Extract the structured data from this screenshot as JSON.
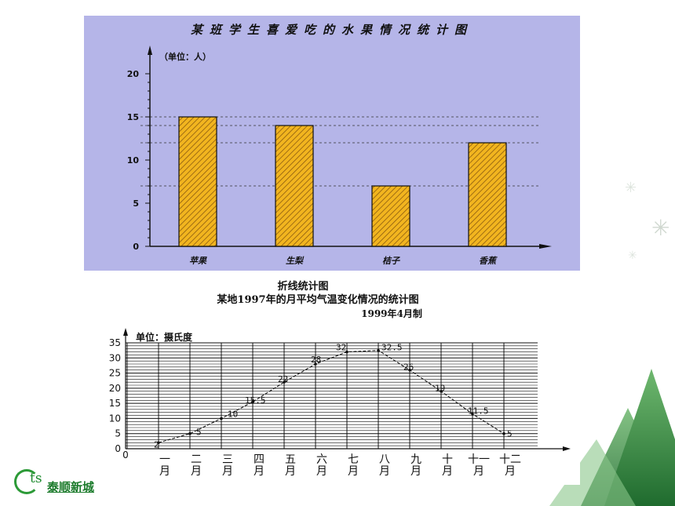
{
  "chart_data": [
    {
      "type": "bar",
      "title": "某班学生喜爱吃的水果情况统计图",
      "unit_label": "（单位：人）",
      "categories": [
        "苹果",
        "生梨",
        "桔子",
        "香蕉"
      ],
      "values": [
        15,
        14,
        7,
        12
      ],
      "y_ticks": [
        "0",
        "5",
        "10",
        "15",
        "20"
      ],
      "ylim": [
        0,
        20
      ],
      "reference_lines": [
        15,
        14,
        12,
        7
      ],
      "colors": {
        "background": "#b5b5e8",
        "bar": "#f2b51f",
        "hatch": "#8a5a10"
      }
    },
    {
      "type": "line",
      "header": "折线统计图",
      "title": "某地1997年的月平均气温变化情况的统计图",
      "subtitle": "1999年4月制",
      "unit_label": "单位：摄氏度",
      "categories": [
        "一月",
        "二月",
        "三月",
        "四月",
        "五月",
        "六月",
        "七月",
        "八月",
        "九月",
        "十月",
        "十一月",
        "十二月"
      ],
      "category_lines": [
        [
          "一",
          "月"
        ],
        [
          "二",
          "月"
        ],
        [
          "三",
          "月"
        ],
        [
          "四",
          "月"
        ],
        [
          "五",
          "月"
        ],
        [
          "六",
          "月"
        ],
        [
          "七",
          "月"
        ],
        [
          "八",
          "月"
        ],
        [
          "九",
          "月"
        ],
        [
          "十",
          "月"
        ],
        [
          "十一",
          "月"
        ],
        [
          "十二",
          "月"
        ]
      ],
      "values": [
        2,
        5,
        10,
        15.5,
        22,
        28,
        32,
        32.5,
        26,
        19,
        11.5,
        5
      ],
      "data_labels": [
        "2",
        "5",
        "10",
        "15.5",
        "22",
        "28",
        "32",
        "32.5",
        "26",
        "19",
        "11.5",
        "5"
      ],
      "y_ticks": [
        "0",
        "5",
        "10",
        "15",
        "20",
        "25",
        "30",
        "35"
      ],
      "ylim": [
        0,
        35
      ],
      "grid": true
    }
  ],
  "logo": {
    "mark": "ts",
    "text": "泰顺新城"
  },
  "colors": {
    "decoration_green": "#3f8f45"
  }
}
